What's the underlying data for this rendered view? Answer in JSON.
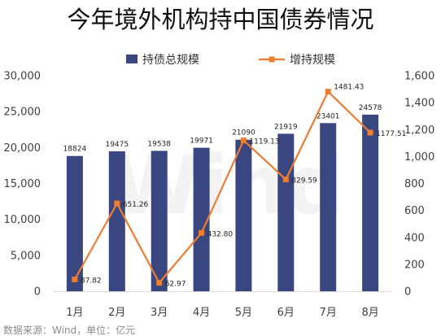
{
  "chart_data": {
    "type": "bar",
    "title": "今年境外机构持中国债券情况",
    "categories": [
      "1月",
      "2月",
      "3月",
      "4月",
      "5月",
      "6月",
      "7月",
      "8月"
    ],
    "series": [
      {
        "name": "持债总规模",
        "type": "bar",
        "axis": "left",
        "color": "#3a4680",
        "values": [
          18824,
          19475,
          19538,
          19971,
          21090,
          21919,
          23401,
          24578
        ],
        "labels": [
          "18824",
          "19475",
          "19538",
          "19971",
          "21090",
          "21919",
          "23401",
          "24578"
        ]
      },
      {
        "name": "增持规模",
        "type": "line",
        "axis": "right",
        "color": "#ed7d31",
        "values": [
          87.82,
          651.26,
          62.97,
          432.8,
          1119.13,
          829.59,
          1481.43,
          1177.51
        ],
        "labels": [
          "87.82",
          "651.26",
          "62.97",
          "432.80",
          "1119.13",
          "829.59",
          "1481.43",
          "1177.51"
        ]
      }
    ],
    "y_left": {
      "min": 0,
      "max": 30000,
      "ticks": [
        0,
        5000,
        10000,
        15000,
        20000,
        25000,
        30000
      ],
      "tick_labels": [
        "0",
        "5,000",
        "10,000",
        "15,000",
        "20,000",
        "25,000",
        "30,000"
      ]
    },
    "y_right": {
      "min": 0,
      "max": 1600,
      "ticks": [
        0,
        200,
        400,
        600,
        800,
        1000,
        1200,
        1400,
        1600
      ],
      "tick_labels": [
        "0",
        "200",
        "400",
        "600",
        "800",
        "1,000",
        "1,200",
        "1,400",
        "1,600"
      ]
    },
    "legend_position": "top",
    "grid": false
  },
  "source_note": "数据来源：Wind，单位：亿元",
  "watermark": "Wind"
}
